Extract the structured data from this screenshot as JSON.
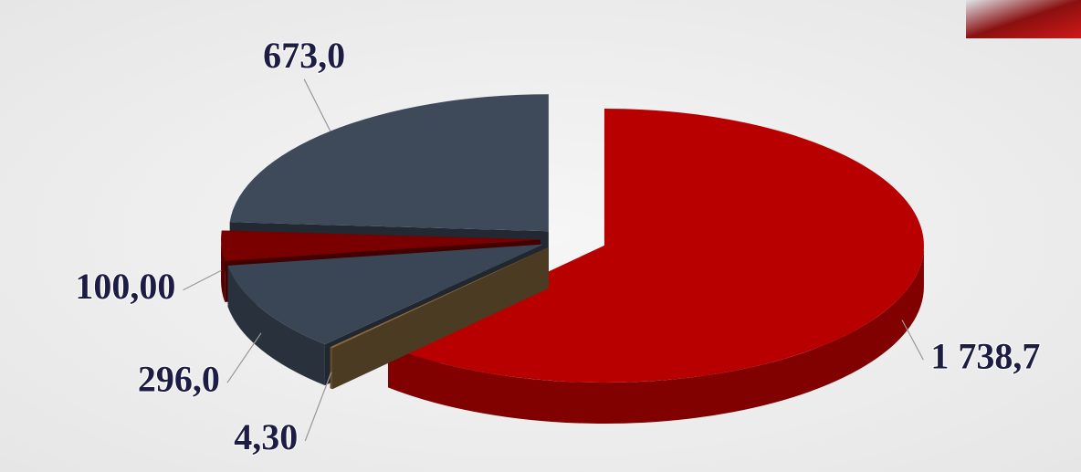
{
  "chart_data": {
    "type": "pie",
    "categories": [
      null,
      null,
      null,
      null,
      null
    ],
    "values": [
      1738.7,
      4.3,
      296,
      100,
      673
    ],
    "value_labels": [
      "1 738,7",
      "4,30",
      "296,0",
      "100,00",
      "673,0"
    ],
    "colors": [
      "#b80000",
      "#8a6c40",
      "#3a4656",
      "#7a0000",
      "#3e4a5a"
    ]
  }
}
